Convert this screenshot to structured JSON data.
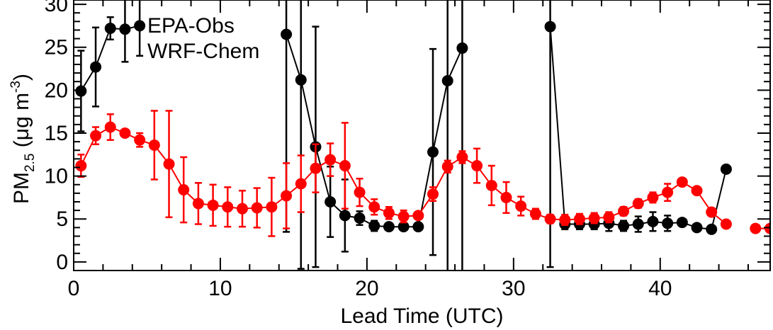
{
  "chart_data": {
    "type": "line",
    "title": "",
    "xlabel": "Lead Time (UTC)",
    "ylabel": {
      "main": "PM",
      "sub": "2.5",
      "unit_open": " (μg m",
      "sup": "-3",
      "unit_close": ")"
    },
    "xlim": [
      0,
      47.5
    ],
    "ylim": [
      -1,
      30.5
    ],
    "xticks": [
      0,
      10,
      20,
      30,
      40
    ],
    "yticks": [
      0,
      5,
      10,
      15,
      20,
      25,
      30
    ],
    "legend_position": "top-left",
    "series": [
      {
        "name": "EPA-Obs",
        "color": "#000000",
        "x": [
          0.5,
          1.5,
          2.5,
          3.5,
          4.5,
          14.5,
          15.5,
          16.5,
          17.5,
          18.5,
          19.5,
          20.5,
          21.5,
          22.5,
          23.5,
          24.5,
          25.5,
          26.5,
          32.5,
          33.5,
          34.5,
          35.5,
          36.5,
          37.5,
          38.5,
          39.5,
          40.5,
          41.5,
          42.5,
          43.5,
          44.5
        ],
        "y": [
          19.9,
          22.7,
          27.2,
          27.1,
          27.5,
          26.5,
          21.2,
          13.4,
          7.0,
          5.4,
          5.1,
          4.2,
          4.1,
          4.1,
          4.1,
          12.8,
          21.1,
          24.9,
          27.4,
          4.4,
          4.4,
          4.4,
          4.5,
          4.2,
          4.4,
          4.7,
          4.5,
          4.6,
          4.0,
          3.8,
          10.8
        ],
        "err": [
          4.7,
          4.6,
          1.3,
          3.8,
          3.5,
          23.0,
          22.0,
          14.0,
          4.1,
          4.2,
          0.8,
          0.6,
          0.3,
          0.3,
          0.3,
          12.0,
          25.0,
          26.0,
          28.0,
          0.6,
          0.6,
          0.6,
          0.9,
          0.6,
          0.9,
          1.1,
          0.9,
          0.3,
          0.3,
          0.3,
          0.0
        ]
      },
      {
        "name": "WRF-Chem",
        "color": "#ff0000",
        "x": [
          0.5,
          1.5,
          2.5,
          3.5,
          4.5,
          5.5,
          6.5,
          7.5,
          8.5,
          9.5,
          10.5,
          11.5,
          12.5,
          13.5,
          14.5,
          15.5,
          16.5,
          17.5,
          18.5,
          19.5,
          20.5,
          21.5,
          22.5,
          23.5,
          24.5,
          25.5,
          26.5,
          27.5,
          28.5,
          29.5,
          30.5,
          31.5,
          32.5,
          33.5,
          34.5,
          35.5,
          36.5,
          37.5,
          38.5,
          39.5,
          40.5,
          41.5,
          42.5,
          43.5,
          44.5
        ],
        "y": [
          11.2,
          14.7,
          15.7,
          15.0,
          14.2,
          13.6,
          11.4,
          8.4,
          6.8,
          6.6,
          6.4,
          6.2,
          6.3,
          6.4,
          7.7,
          9.1,
          10.9,
          11.9,
          11.2,
          8.1,
          6.4,
          5.7,
          5.3,
          5.4,
          7.9,
          11.1,
          12.2,
          11.2,
          8.9,
          7.5,
          6.5,
          5.6,
          5.0,
          4.9,
          5.0,
          5.1,
          5.2,
          5.9,
          6.8,
          7.5,
          8.1,
          9.3,
          8.3,
          5.8,
          4.4
        ],
        "err": [
          1.3,
          1.0,
          1.5,
          0.3,
          0.8,
          4.0,
          6.2,
          3.8,
          2.4,
          2.4,
          2.3,
          2.1,
          2.3,
          3.4,
          3.8,
          3.3,
          2.8,
          1.9,
          5.0,
          1.6,
          0.9,
          0.7,
          0.7,
          0.3,
          0.8,
          0.7,
          0.7,
          2.0,
          2.3,
          1.8,
          1.1,
          0.6,
          0.5,
          0.6,
          0.6,
          0.6,
          0.6,
          0.5,
          0.5,
          0.6,
          1.0,
          0.3,
          0.3,
          0.3,
          0.0
        ]
      },
      {
        "name": "",
        "color": "#ff0000",
        "x": [
          46.5,
          47.5
        ],
        "y": [
          3.9,
          3.9
        ],
        "err": [
          0,
          0
        ]
      }
    ]
  }
}
